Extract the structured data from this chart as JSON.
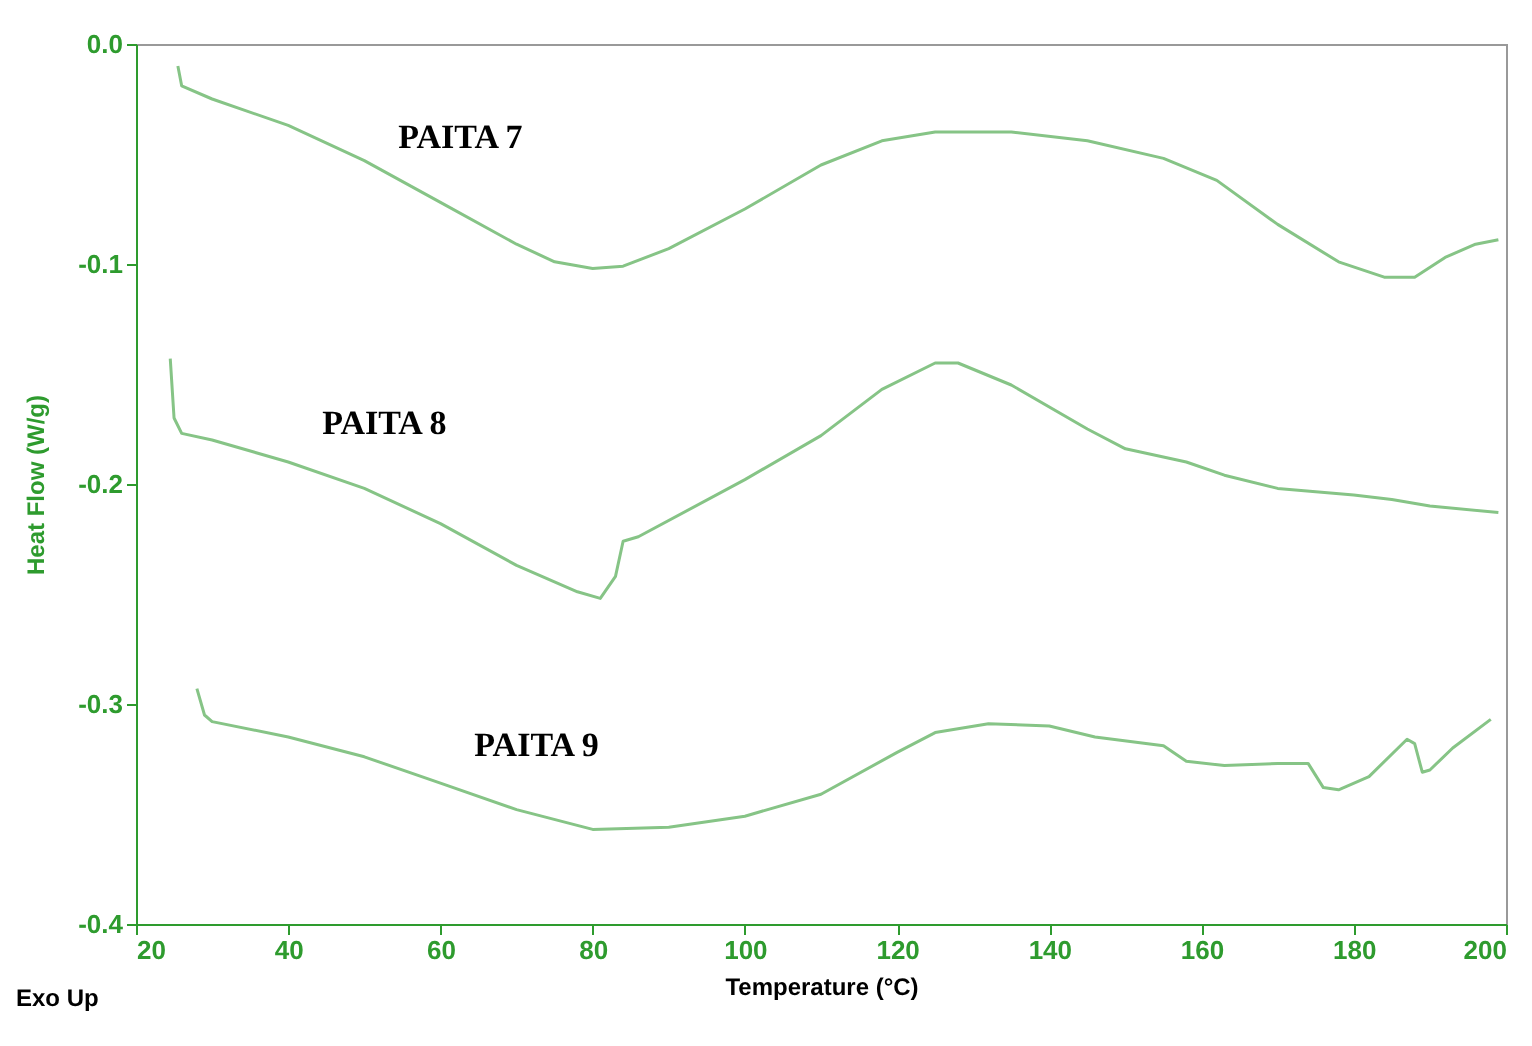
{
  "chart_data": {
    "type": "line",
    "xlabel": "Temperature (°C)",
    "ylabel": "Heat Flow (W/g)",
    "xlim": [
      20,
      200
    ],
    "xticks": [
      20,
      40,
      60,
      80,
      100,
      120,
      140,
      160,
      180,
      200
    ],
    "ylim": [
      -0.4,
      0.0
    ],
    "yticks": [
      {
        "value": 0,
        "label": "0.0"
      },
      -0.1,
      -0.2,
      -0.3,
      -0.4
    ],
    "grid": false,
    "legend": false,
    "marker": "none",
    "line_style": "solid",
    "annotations": [
      "Exo Up"
    ],
    "series": [
      {
        "name": "PAITA 7",
        "color": "#86c486",
        "x": [
          25.5,
          26,
          30,
          40,
          50,
          60,
          70,
          75,
          80,
          84,
          90,
          100,
          110,
          118,
          125,
          135,
          145,
          155,
          162,
          170,
          178,
          184,
          188,
          192,
          196,
          199
        ],
        "values": [
          -0.01,
          -0.019,
          -0.025,
          -0.037,
          -0.053,
          -0.072,
          -0.091,
          -0.099,
          -0.102,
          -0.101,
          -0.093,
          -0.075,
          -0.055,
          -0.044,
          -0.04,
          -0.04,
          -0.044,
          -0.052,
          -0.062,
          -0.082,
          -0.099,
          -0.106,
          -0.106,
          -0.097,
          -0.091,
          -0.089
        ]
      },
      {
        "name": "PAITA 8",
        "color": "#86c486",
        "x": [
          24.5,
          25,
          26,
          30,
          40,
          50,
          60,
          70,
          78,
          81,
          83,
          84,
          86,
          100,
          110,
          118,
          125,
          128,
          135,
          145,
          150,
          158,
          163,
          170,
          180,
          185,
          190,
          199
        ],
        "values": [
          -0.143,
          -0.17,
          -0.177,
          -0.18,
          -0.19,
          -0.202,
          -0.218,
          -0.237,
          -0.249,
          -0.252,
          -0.242,
          -0.226,
          -0.224,
          -0.198,
          -0.178,
          -0.157,
          -0.145,
          -0.145,
          -0.155,
          -0.175,
          -0.184,
          -0.19,
          -0.196,
          -0.202,
          -0.205,
          -0.207,
          -0.21,
          -0.213
        ]
      },
      {
        "name": "PAITA 9",
        "color": "#86c486",
        "x": [
          28,
          29,
          30,
          40,
          50,
          60,
          70,
          80,
          90,
          100,
          110,
          120,
          125,
          132,
          140,
          146,
          155,
          158,
          163,
          170,
          174,
          176,
          178,
          182,
          187,
          188,
          189,
          190,
          193,
          198
        ],
        "values": [
          -0.293,
          -0.305,
          -0.308,
          -0.315,
          -0.324,
          -0.336,
          -0.348,
          -0.357,
          -0.356,
          -0.351,
          -0.341,
          -0.322,
          -0.313,
          -0.309,
          -0.31,
          -0.315,
          -0.319,
          -0.326,
          -0.328,
          -0.327,
          -0.327,
          -0.338,
          -0.339,
          -0.333,
          -0.316,
          -0.318,
          -0.331,
          -0.33,
          -0.32,
          -0.307
        ]
      }
    ]
  }
}
